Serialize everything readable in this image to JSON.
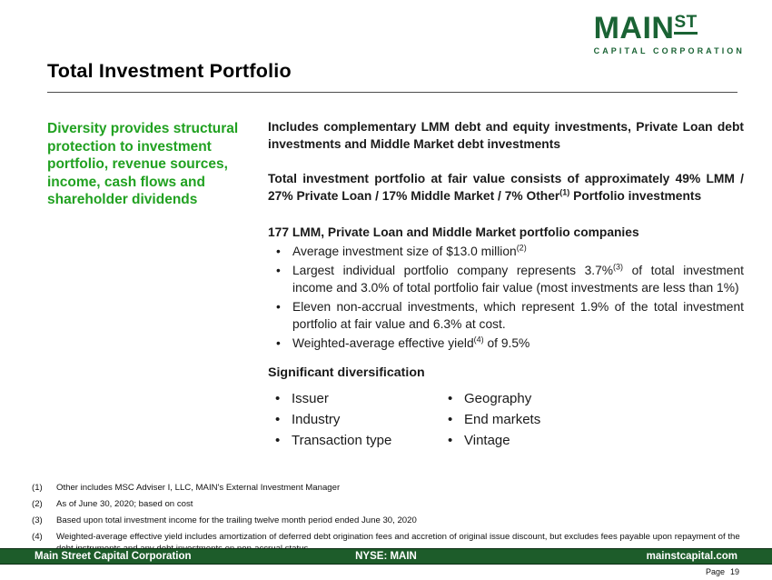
{
  "logo": {
    "main": "MAIN",
    "st": "ST",
    "subtitle": "CAPITAL CORPORATION"
  },
  "title": "Total Investment Portfolio",
  "sidebar": {
    "statement": "Diversity provides structural protection to investment portfolio, revenue sources, income, cash flows and shareholder dividends"
  },
  "content": {
    "para1": "Includes complementary LMM debt and equity investments, Private Loan debt investments and Middle Market debt investments",
    "para2_pre": "Total investment portfolio at fair value consists of approximately 49% LMM / 27% Private Loan / 17% Middle Market / 7% Other",
    "para2_sup": "(1)",
    "para2_post": " Portfolio investments",
    "heading_companies": "177 LMM, Private Loan and Middle Market portfolio companies",
    "bullets": [
      {
        "pre": "Average investment size of $13.0 million",
        "sup": "(2)",
        "post": ""
      },
      {
        "pre": "Largest individual portfolio company represents 3.7%",
        "sup": "(3)",
        "post": " of total investment income and 3.0% of total portfolio fair value (most investments are less than 1%)"
      },
      {
        "pre": "Eleven non-accrual investments, which represent 1.9% of the total investment portfolio at fair value and 6.3% at cost.",
        "sup": "",
        "post": ""
      },
      {
        "pre": "Weighted-average effective yield",
        "sup": "(4)",
        "post": " of 9.5%"
      }
    ],
    "diversification_heading": "Significant diversification",
    "diversification_left": [
      "Issuer",
      "Industry",
      "Transaction type"
    ],
    "diversification_right": [
      "Geography",
      "End markets",
      "Vintage"
    ]
  },
  "footnotes": [
    {
      "num": "(1)",
      "text": "Other includes MSC Adviser I, LLC, MAIN's External Investment Manager"
    },
    {
      "num": "(2)",
      "text": "As of June 30, 2020; based on cost"
    },
    {
      "num": "(3)",
      "text": "Based upon total investment income for the trailing twelve month period ended June 30, 2020"
    },
    {
      "num": "(4)",
      "text": "Weighted-average effective yield includes amortization of deferred debt origination fees and accretion of original issue discount, but excludes fees payable upon repayment of the debt instruments and any debt investments on non-accrual status"
    }
  ],
  "footer": {
    "left": "Main Street Capital Corporation",
    "center": "NYSE: MAIN",
    "right": "mainstcapital.com",
    "page_label": "Page",
    "page_number": "19"
  },
  "colors": {
    "brand_green_dark": "#1a6334",
    "statement_green": "#21a121",
    "footer_bar_green": "#1d5c2a"
  }
}
